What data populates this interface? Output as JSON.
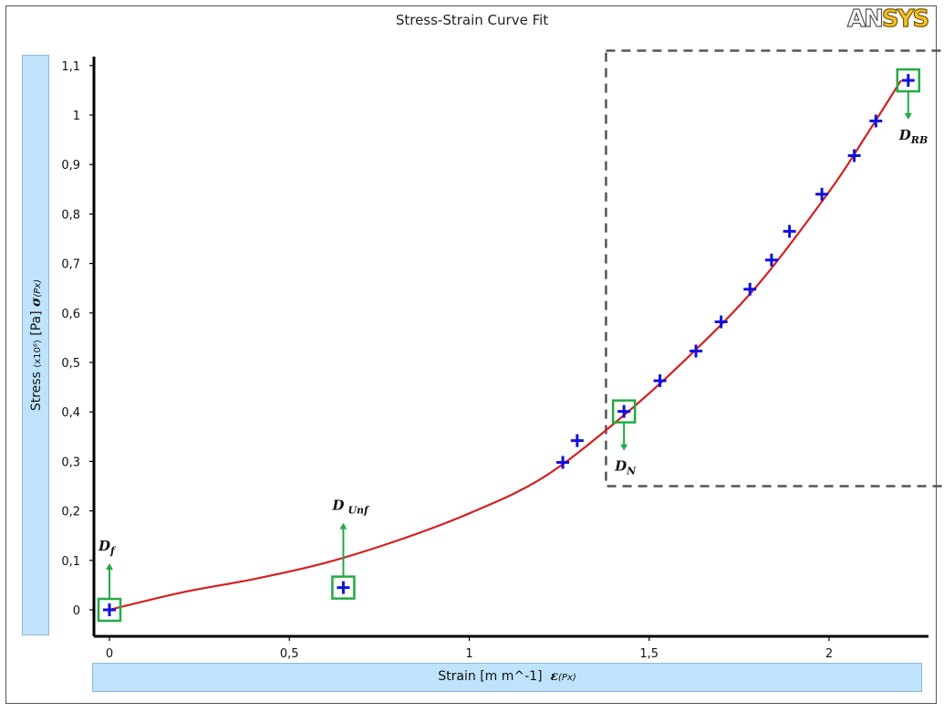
{
  "logo": {
    "part1": "AN",
    "part2": "SYS"
  },
  "chart_data": {
    "type": "scatter",
    "title": "Stress-Strain Curve Fit",
    "ylabel": {
      "text": "Stress",
      "unit_prefix": "(x10⁶)",
      "unit": "[Pa]",
      "symbol": "σ",
      "symbol_sub": "(Px)"
    },
    "xlabel": {
      "text": "Strain",
      "unit": "[m m^-1]",
      "symbol": "ε",
      "symbol_sub": "(Px)"
    },
    "xlim": [
      -0.04,
      2.27
    ],
    "ylim": [
      -0.04,
      1.13
    ],
    "x_ticks": [
      0,
      0.5,
      1,
      1.5,
      2
    ],
    "x_tick_labels": [
      "0",
      "0,5",
      "1",
      "1,5",
      "2"
    ],
    "y_ticks": [
      0,
      0.1,
      0.2,
      0.3,
      0.4,
      0.5,
      0.6,
      0.7,
      0.8,
      0.9,
      1,
      1.1
    ],
    "y_tick_labels": [
      "0",
      "0,1",
      "0,2",
      "0,3",
      "0,4",
      "0,5",
      "0,6",
      "0,7",
      "0,8",
      "0,9",
      "1",
      "1,1"
    ],
    "series": [
      {
        "kind": "points",
        "color": "#1111dd",
        "x": [
          0,
          0.65,
          1.26,
          1.3,
          1.43,
          1.53,
          1.63,
          1.7,
          1.78,
          1.84,
          1.89,
          1.98,
          2.07,
          2.13,
          2.22
        ],
        "y": [
          0,
          0.045,
          0.298,
          0.342,
          0.401,
          0.463,
          0.523,
          0.582,
          0.648,
          0.707,
          0.765,
          0.84,
          0.918,
          0.988,
          1.07
        ]
      },
      {
        "kind": "fit",
        "color": "#d42020",
        "x": [
          0,
          0.2,
          0.4,
          0.6,
          0.8,
          1.0,
          1.2,
          1.4,
          1.6,
          1.8,
          2.0,
          2.1,
          2.2
        ],
        "y": [
          0,
          0.035,
          0.062,
          0.095,
          0.14,
          0.195,
          0.265,
          0.375,
          0.505,
          0.655,
          0.845,
          0.955,
          1.07
        ]
      }
    ],
    "grid": false,
    "legend": "none",
    "annotations": [
      {
        "label": "D",
        "sub": "f",
        "x": 0,
        "y": 0,
        "arrow": "up"
      },
      {
        "label": "D",
        "sub": "Unf",
        "x": 0.65,
        "y": 0.045,
        "arrow": "up"
      },
      {
        "label": "D",
        "sub": "N",
        "x": 1.43,
        "y": 0.401,
        "arrow": "down"
      },
      {
        "label": "D",
        "sub": "RB",
        "x": 2.22,
        "y": 1.07,
        "arrow": "down"
      }
    ],
    "highlight_region": {
      "x": [
        1.38,
        2.27
      ],
      "y": [
        0.25,
        1.13
      ],
      "style": "dashed"
    },
    "colors": {
      "marker_box": "#22aa44",
      "background": "#ffffff"
    }
  }
}
